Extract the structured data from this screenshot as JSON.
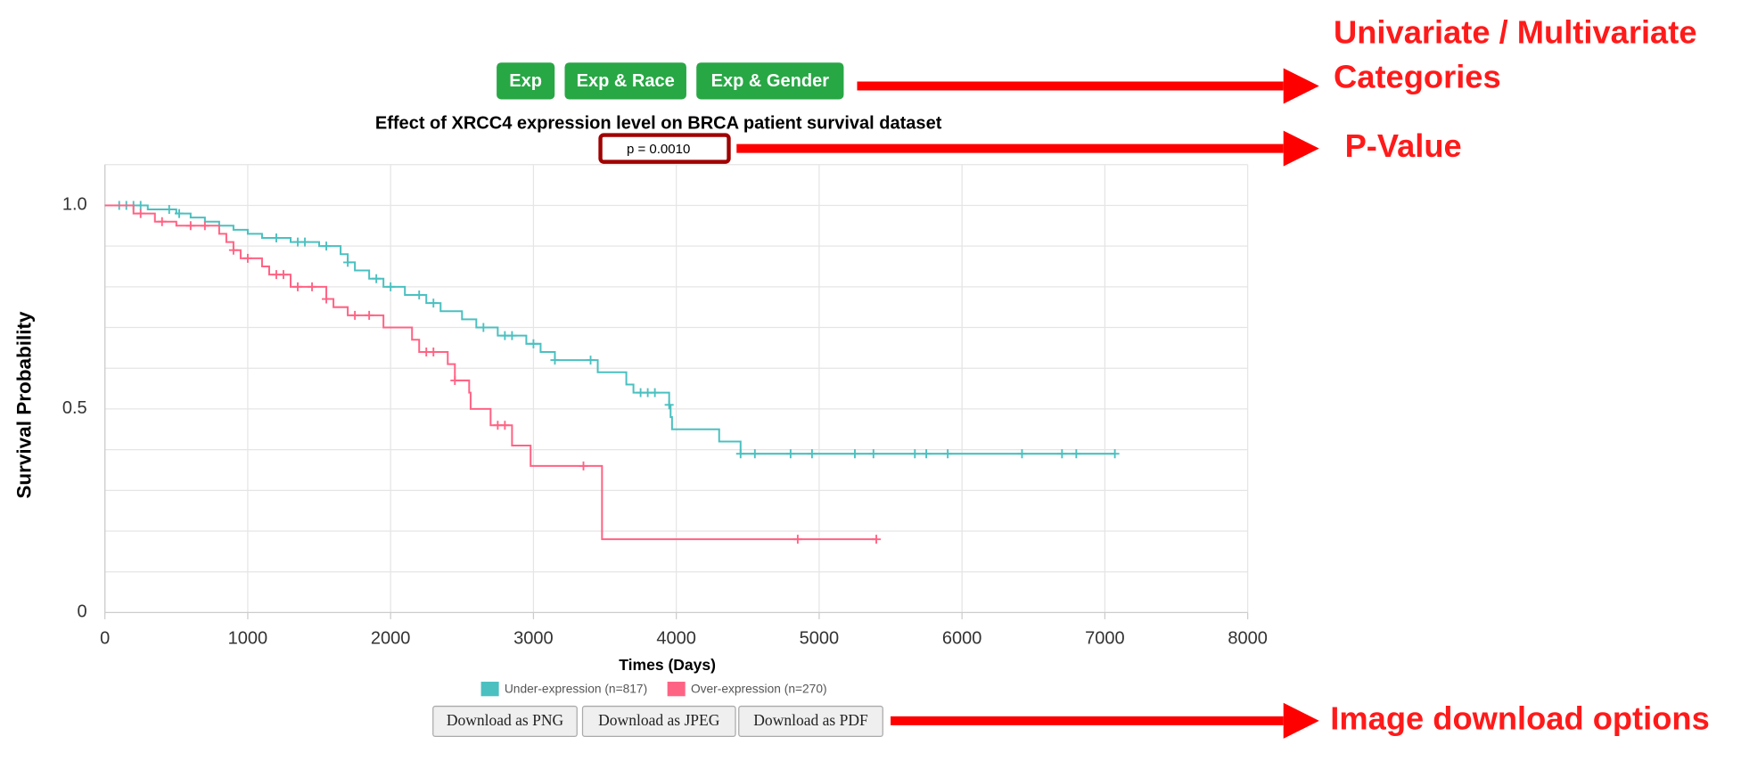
{
  "buttons": [
    "Exp",
    "Exp & Race",
    "Exp & Gender"
  ],
  "chart_data": {
    "type": "survival",
    "title": "Effect of XRCC4 expression level on BRCA patient survival dataset",
    "p_value_label": "p = 0.0010",
    "x_label": "Times (Days)",
    "y_label": "Survival Probability",
    "xlim": [
      0,
      8000
    ],
    "xticks": [
      0,
      1000,
      2000,
      3000,
      4000,
      5000,
      6000,
      7000,
      8000
    ],
    "ylim": [
      0,
      1.1
    ],
    "yticks": [
      0,
      0.5,
      {
        "value": 1,
        "label": "1.0"
      }
    ],
    "ygrid": [
      0.1,
      0.2,
      0.3,
      0.4,
      0.5,
      0.6,
      0.7,
      0.8,
      0.9,
      1
    ],
    "grid": true,
    "series": [
      {
        "name": "Under-expression (n=817)",
        "color": "#4bc0c0",
        "x": [
          0,
          300,
          500,
          600,
          700,
          800,
          900,
          1000,
          1100,
          1300,
          1500,
          1650,
          1700,
          1750,
          1850,
          1950,
          2100,
          2250,
          2350,
          2500,
          2600,
          2750,
          2950,
          3050,
          3150,
          3450,
          3650,
          3700,
          3950,
          3960,
          3970,
          4300,
          4450,
          7070
        ],
        "values": [
          1,
          0.99,
          0.98,
          0.97,
          0.96,
          0.95,
          0.94,
          0.93,
          0.92,
          0.91,
          0.9,
          0.88,
          0.86,
          0.84,
          0.82,
          0.8,
          0.78,
          0.76,
          0.74,
          0.72,
          0.7,
          0.68,
          0.66,
          0.64,
          0.62,
          0.59,
          0.56,
          0.54,
          0.51,
          0.48,
          0.45,
          0.42,
          0.39,
          0.39
        ],
        "censored": [
          100,
          150,
          200,
          250,
          450,
          520,
          1200,
          1350,
          1400,
          1550,
          1700,
          1900,
          2000,
          2200,
          2300,
          2650,
          2800,
          2850,
          3000,
          3150,
          3400,
          3750,
          3800,
          3850,
          3950,
          4450,
          4550,
          4800,
          4950,
          5250,
          5380,
          5670,
          5750,
          5900,
          6420,
          6700,
          6800,
          7070
        ]
      },
      {
        "name": "Over-expression (n=270)",
        "color": "#ff6384",
        "x": [
          0,
          200,
          350,
          500,
          800,
          850,
          900,
          950,
          1100,
          1150,
          1300,
          1550,
          1600,
          1700,
          1950,
          2150,
          2200,
          2400,
          2450,
          2550,
          2560,
          2700,
          2850,
          2980,
          3480,
          5400
        ],
        "values": [
          1,
          0.98,
          0.96,
          0.95,
          0.93,
          0.91,
          0.89,
          0.87,
          0.85,
          0.83,
          0.8,
          0.77,
          0.75,
          0.73,
          0.7,
          0.67,
          0.64,
          0.61,
          0.57,
          0.54,
          0.5,
          0.46,
          0.41,
          0.36,
          0.18,
          0.18
        ],
        "censored": [
          250,
          400,
          600,
          700,
          900,
          1000,
          1200,
          1250,
          1350,
          1450,
          1550,
          1750,
          1850,
          2250,
          2300,
          2450,
          2750,
          2800,
          3350,
          4850,
          5400
        ]
      }
    ]
  },
  "download_buttons": [
    "Download as PNG",
    "Download as JPEG",
    "Download as PDF"
  ],
  "annotations": [
    "Univariate / Multivariate",
    "Categories",
    "P-Value",
    "Image download options"
  ]
}
